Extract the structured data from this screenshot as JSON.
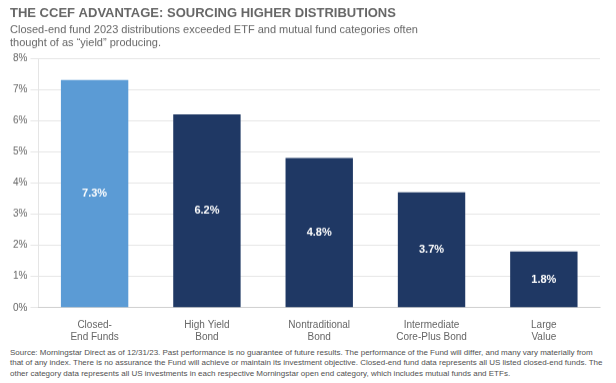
{
  "chart_data": {
    "type": "bar",
    "title": "THE CCEF ADVANTAGE: SOURCING HIGHER DISTRIBUTIONS",
    "subtitle": "Closed-end fund 2023 distributions exceeded ETF and mutual fund categories often\nthought of as “yield” producing.",
    "categories": [
      "Closed-\nEnd Funds",
      "High Yield\nBond",
      "Nontraditional\nBond",
      "Intermediate\nCore-Plus Bond",
      "Large\nValue"
    ],
    "values": [
      7.3,
      6.2,
      4.8,
      3.7,
      1.8
    ],
    "value_labels": [
      "7.3%",
      "6.2%",
      "4.8%",
      "3.7%",
      "1.8%"
    ],
    "data_labels": true,
    "colors": [
      "#5b9bd5",
      "#1f3864",
      "#1f3864",
      "#1f3864",
      "#1f3864"
    ],
    "ylim": [
      0,
      8
    ],
    "yticks": [
      {
        "value": 0,
        "label": "0%"
      },
      {
        "value": 1,
        "label": "1%"
      },
      {
        "value": 2,
        "label": "2%"
      },
      {
        "value": 3,
        "label": "3%"
      },
      {
        "value": 4,
        "label": "4%"
      },
      {
        "value": 5,
        "label": "5%"
      },
      {
        "value": 6,
        "label": "6%"
      },
      {
        "value": 7,
        "label": "7%"
      },
      {
        "value": 8,
        "label": "8%"
      }
    ],
    "grid": true,
    "annotations": [
      "Source: Morningstar Direct as of 12/31/23. Past performance is no guarantee of future results. The performance of the Fund will differ, and many vary materially from that of any index. There is no assurance the Fund will achieve or maintain its investment objective. Closed-end fund data represents all US listed closed-end funds. The other category data represents all US investments in each respective Morningstar open end category, which includes mutual funds and ETFs."
    ]
  }
}
